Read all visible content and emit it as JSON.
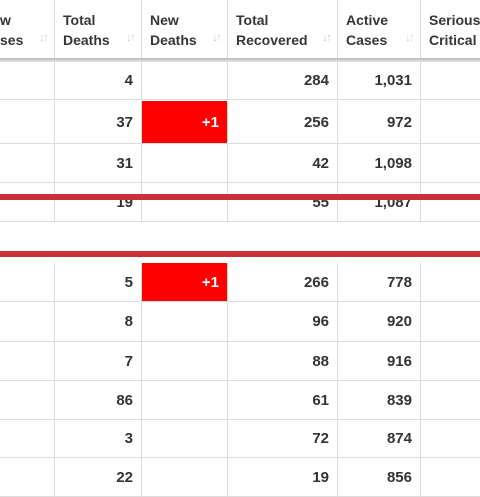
{
  "columns": [
    {
      "line1": "w",
      "line2": "ses",
      "sortable": true
    },
    {
      "line1": "Total",
      "line2": "Deaths",
      "sortable": true
    },
    {
      "line1": "New",
      "line2": "Deaths",
      "sortable": true
    },
    {
      "line1": "Total",
      "line2": "Recovered",
      "sortable": true
    },
    {
      "line1": "Active",
      "line2": "Cases",
      "sortable": true
    },
    {
      "line1": "Serious",
      "line2": "Critical",
      "sortable": false
    }
  ],
  "sort_icon": "sort-arrows-icon",
  "rows": [
    {
      "total_deaths": "4",
      "new_deaths": "",
      "total_recovered": "284",
      "active_cases": "1,031"
    },
    {
      "total_deaths": "37",
      "new_deaths": "+1",
      "total_recovered": "256",
      "active_cases": "972"
    },
    {
      "total_deaths": "31",
      "new_deaths": "",
      "total_recovered": "42",
      "active_cases": "1,098"
    },
    {
      "total_deaths": "19",
      "new_deaths": "",
      "total_recovered": "55",
      "active_cases": "1,087"
    },
    {
      "total_deaths": "5",
      "new_deaths": "+1",
      "total_recovered": "266",
      "active_cases": "778"
    },
    {
      "total_deaths": "8",
      "new_deaths": "",
      "total_recovered": "96",
      "active_cases": "920"
    },
    {
      "total_deaths": "7",
      "new_deaths": "",
      "total_recovered": "88",
      "active_cases": "916"
    },
    {
      "total_deaths": "86",
      "new_deaths": "",
      "total_recovered": "61",
      "active_cases": "839"
    },
    {
      "total_deaths": "3",
      "new_deaths": "",
      "total_recovered": "72",
      "active_cases": "874"
    },
    {
      "total_deaths": "22",
      "new_deaths": "",
      "total_recovered": "19",
      "active_cases": "856"
    }
  ],
  "colors": {
    "new_deaths_highlight": "#ff0000",
    "row_highlight_bar": "#c8303a",
    "grid": "#dcdcdc"
  }
}
